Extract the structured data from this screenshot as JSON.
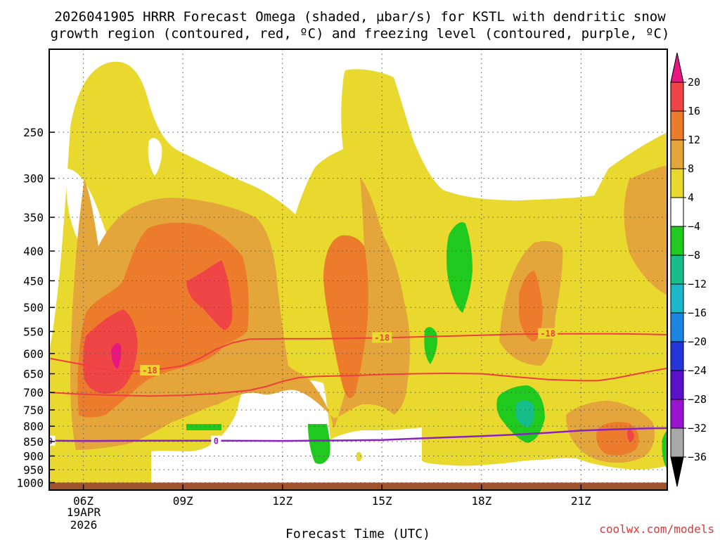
{
  "chart_data": {
    "type": "time-height cross section",
    "title_line1": "2026041905 HRRR Forecast Omega (shaded, µbar/s) for KSTL with dendritic snow",
    "title_line2": "growth region (contoured, red, ºC) and freezing level (contoured, purple, ºC)",
    "xlabel": "Forecast Time (UTC)",
    "x_ticks": [
      "06Z",
      "09Z",
      "12Z",
      "15Z",
      "18Z",
      "21Z"
    ],
    "x_tick_hours": [
      6,
      9,
      12,
      15,
      18,
      21
    ],
    "x_date_line1": "19APR",
    "x_date_line2": "2026",
    "x_range_hours": [
      4.97,
      23.6
    ],
    "y_ticks": [
      250,
      300,
      350,
      400,
      450,
      500,
      550,
      600,
      650,
      700,
      750,
      800,
      850,
      900,
      950,
      1000
    ],
    "y_range_hpa": [
      180,
      1030
    ],
    "ground_level_hpa": 1000,
    "credit": "coolwx.com/models",
    "colorbar": {
      "labels": [
        "20",
        "16",
        "12",
        "8",
        "4",
        "−4",
        "−8",
        "−12",
        "−16",
        "−20",
        "−24",
        "−28",
        "−32",
        "−36"
      ],
      "colors": [
        "#e8177f",
        "#f04545",
        "#ed7b2c",
        "#e4a53a",
        "#e9d92f",
        "#ffffff",
        "#1fc91e",
        "#16bf8a",
        "#1ab8c8",
        "#1a86e2",
        "#2534d8",
        "#5a10c8",
        "#9a14cf",
        "#a8a8a8",
        "#000000"
      ]
    },
    "omega_shading": [
      {
        "level": "4 to 8",
        "color": "#e9d92f"
      },
      {
        "level": "8 to 12",
        "color": "#e4a53a"
      },
      {
        "level": "12 to 16",
        "color": "#ed7b2c"
      },
      {
        "level": "16 to 20",
        "color": "#f04545"
      },
      {
        "level": "above 20",
        "color": "#e8177f"
      },
      {
        "level": "-4 to -8",
        "color": "#1fc91e"
      },
      {
        "level": "-8 to -12",
        "color": "#16bf8a"
      }
    ],
    "dgz_contours": {
      "value": "-18",
      "color": "#ef3e3e",
      "upper": {
        "t": [
          5.0,
          6.0,
          7.0,
          8.0,
          9.0,
          9.5,
          10.0,
          10.5,
          11.0,
          12.0,
          13.0,
          14.0,
          15.0,
          16.0,
          17.0,
          18.0,
          19.0,
          20.0,
          21.0,
          22.0,
          23.0,
          23.6
        ],
        "p": [
          612,
          627,
          645,
          642,
          630,
          612,
          590,
          575,
          567,
          566,
          566,
          565,
          564,
          562,
          560,
          558,
          556,
          555,
          555,
          555,
          556,
          557
        ]
      },
      "lower": {
        "t": [
          5.0,
          6.0,
          7.0,
          8.0,
          9.0,
          10.0,
          11.0,
          11.5,
          12.0,
          12.5,
          13.0,
          14.0,
          15.0,
          16.0,
          17.0,
          18.0,
          19.0,
          20.0,
          21.0,
          21.5,
          22.0,
          23.0,
          23.6
        ],
        "p": [
          700,
          705,
          708,
          710,
          708,
          703,
          694,
          684,
          670,
          660,
          657,
          655,
          652,
          650,
          649,
          650,
          658,
          665,
          668,
          668,
          662,
          645,
          636
        ]
      }
    },
    "freezing_level": {
      "value": "0",
      "color": "#8a22c2",
      "t": [
        5.0,
        6.0,
        8.0,
        10.0,
        12.0,
        14.0,
        15.0,
        16.0,
        17.0,
        18.0,
        19.0,
        20.0,
        21.0,
        22.0,
        23.0,
        23.6
      ],
      "p": [
        847,
        848,
        847,
        847,
        848,
        846,
        845,
        840,
        836,
        832,
        827,
        821,
        814,
        810,
        807,
        806
      ]
    }
  }
}
